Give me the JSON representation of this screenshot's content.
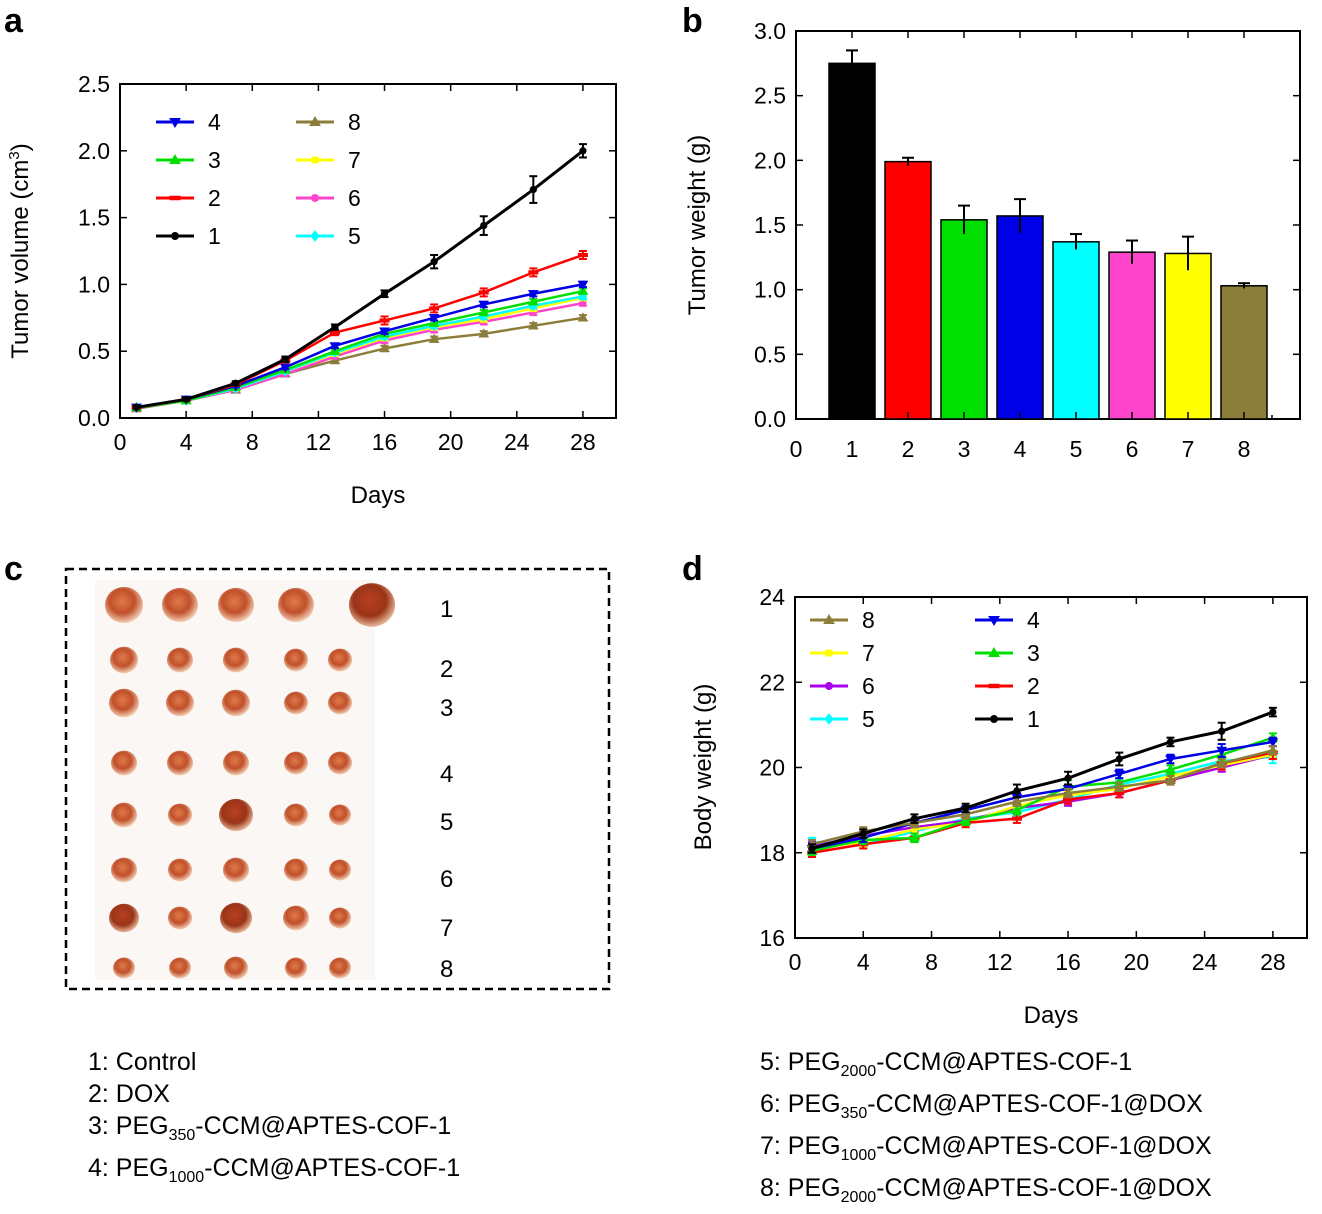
{
  "panels": {
    "a": "a",
    "b": "b",
    "c": "c",
    "d": "d"
  },
  "colors": {
    "1": "#000000",
    "2": "#ff0000",
    "3": "#00e000",
    "4": "#0000e6",
    "5": "#00ffff",
    "6": "#ff44cc",
    "7": "#ffff00",
    "8": "#8b7d3a",
    "d6": "#aa00ee"
  },
  "panel_c": {
    "row_labels": [
      "1",
      "2",
      "3",
      "4",
      "5",
      "6",
      "7",
      "8"
    ],
    "description_in_image": "photograph of excised tumors arranged in 8 rows"
  },
  "captions": {
    "left": [
      {
        "prefix": "1: Control",
        "sub": "",
        "suffix": ""
      },
      {
        "prefix": "2: DOX",
        "sub": "",
        "suffix": ""
      },
      {
        "prefix": "3: PEG",
        "sub": "350",
        "suffix": "-CCM@APTES-COF-1"
      },
      {
        "prefix": "4: PEG",
        "sub": "1000",
        "suffix": "-CCM@APTES-COF-1"
      }
    ],
    "right": [
      {
        "prefix": "5: PEG",
        "sub": "2000",
        "suffix": "-CCM@APTES-COF-1"
      },
      {
        "prefix": "6: PEG",
        "sub": "350",
        "suffix": "-CCM@APTES-COF-1@DOX"
      },
      {
        "prefix": "7: PEG",
        "sub": "1000",
        "suffix": "-CCM@APTES-COF-1@DOX"
      },
      {
        "prefix": "8: PEG",
        "sub": "2000",
        "suffix": "-CCM@APTES-COF-1@DOX"
      }
    ]
  },
  "chart_data": [
    {
      "id": "a",
      "type": "line",
      "title": "",
      "xlabel": "Days",
      "ylabel_prefix": "Tumor volume (cm",
      "ylabel_sup": "3",
      "ylabel_suffix": ")",
      "xlim": [
        0,
        30
      ],
      "ylim": [
        0,
        2.5
      ],
      "xticks": [
        0,
        4,
        8,
        12,
        16,
        20,
        24,
        28
      ],
      "yticks": [
        0.0,
        0.5,
        1.0,
        1.5,
        2.0,
        2.5
      ],
      "ytick_labels": [
        "0.0",
        "0.5",
        "1.0",
        "1.5",
        "2.0",
        "2.5"
      ],
      "x": [
        1,
        4,
        7,
        10,
        13,
        16,
        19,
        22,
        25,
        28
      ],
      "legend_columns": [
        [
          "4",
          "3",
          "2",
          "1"
        ],
        [
          "8",
          "7",
          "6",
          "5"
        ]
      ],
      "series": [
        {
          "name": "1",
          "marker": "circle",
          "values": [
            0.08,
            0.14,
            0.26,
            0.44,
            0.68,
            0.93,
            1.17,
            1.44,
            1.71,
            2.0
          ],
          "errors": [
            0.01,
            0.01,
            0.015,
            0.02,
            0.02,
            0.025,
            0.05,
            0.07,
            0.1,
            0.05
          ]
        },
        {
          "name": "2",
          "marker": "dash",
          "values": [
            0.08,
            0.14,
            0.25,
            0.43,
            0.64,
            0.73,
            0.82,
            0.94,
            1.09,
            1.22
          ],
          "errors": [
            0.01,
            0.01,
            0.01,
            0.015,
            0.02,
            0.03,
            0.03,
            0.03,
            0.03,
            0.03
          ]
        },
        {
          "name": "3",
          "marker": "triangle",
          "values": [
            0.08,
            0.13,
            0.23,
            0.36,
            0.5,
            0.63,
            0.71,
            0.79,
            0.87,
            0.95
          ],
          "errors": [
            0.01,
            0.01,
            0.01,
            0.015,
            0.015,
            0.02,
            0.02,
            0.02,
            0.02,
            0.02
          ]
        },
        {
          "name": "4",
          "marker": "triangle-down",
          "values": [
            0.08,
            0.14,
            0.24,
            0.38,
            0.54,
            0.65,
            0.75,
            0.85,
            0.93,
            1.0
          ],
          "errors": [
            0.01,
            0.01,
            0.01,
            0.015,
            0.015,
            0.02,
            0.02,
            0.02,
            0.02,
            0.02
          ]
        },
        {
          "name": "5",
          "marker": "diamond",
          "values": [
            0.08,
            0.13,
            0.22,
            0.35,
            0.49,
            0.61,
            0.69,
            0.76,
            0.84,
            0.91
          ],
          "errors": [
            0.01,
            0.01,
            0.01,
            0.015,
            0.015,
            0.02,
            0.02,
            0.02,
            0.02,
            0.02
          ]
        },
        {
          "name": "6",
          "marker": "circle",
          "values": [
            0.08,
            0.13,
            0.21,
            0.33,
            0.46,
            0.58,
            0.66,
            0.72,
            0.79,
            0.86
          ],
          "errors": [
            0.01,
            0.01,
            0.01,
            0.015,
            0.015,
            0.02,
            0.02,
            0.02,
            0.02,
            0.02
          ]
        },
        {
          "name": "7",
          "marker": "square",
          "values": [
            0.08,
            0.13,
            0.22,
            0.35,
            0.48,
            0.6,
            0.68,
            0.74,
            0.82,
            0.9
          ],
          "errors": [
            0.01,
            0.01,
            0.01,
            0.015,
            0.015,
            0.02,
            0.02,
            0.02,
            0.02,
            0.02
          ]
        },
        {
          "name": "8",
          "marker": "triangle",
          "values": [
            0.07,
            0.13,
            0.21,
            0.33,
            0.43,
            0.52,
            0.59,
            0.63,
            0.69,
            0.75
          ],
          "errors": [
            0.01,
            0.01,
            0.01,
            0.015,
            0.015,
            0.02,
            0.02,
            0.02,
            0.02,
            0.02
          ]
        }
      ]
    },
    {
      "id": "b",
      "type": "bar",
      "title": "",
      "xlabel": "",
      "ylabel": "Tumor weight (g)",
      "xlim": [
        0,
        9
      ],
      "ylim": [
        0,
        3.0
      ],
      "xticks": [
        0,
        1,
        2,
        3,
        4,
        5,
        6,
        7,
        8
      ],
      "yticks": [
        0.0,
        0.5,
        1.0,
        1.5,
        2.0,
        2.5,
        3.0
      ],
      "ytick_labels": [
        "0.0",
        "0.5",
        "1.0",
        "1.5",
        "2.0",
        "2.5",
        "3.0"
      ],
      "categories": [
        "1",
        "2",
        "3",
        "4",
        "5",
        "6",
        "7",
        "8"
      ],
      "values": [
        2.75,
        1.99,
        1.54,
        1.57,
        1.37,
        1.29,
        1.28,
        1.03
      ],
      "errors": [
        0.1,
        0.03,
        0.11,
        0.13,
        0.06,
        0.09,
        0.13,
        0.02
      ]
    },
    {
      "id": "d",
      "type": "line",
      "title": "",
      "xlabel": "Days",
      "ylabel": "Body weight (g)",
      "xlim": [
        0,
        30
      ],
      "ylim": [
        16,
        24
      ],
      "xticks": [
        0,
        4,
        8,
        12,
        16,
        20,
        24,
        28
      ],
      "yticks": [
        16,
        18,
        20,
        22,
        24
      ],
      "ytick_labels": [
        "16",
        "18",
        "20",
        "22",
        "24"
      ],
      "x": [
        1,
        4,
        7,
        10,
        13,
        16,
        19,
        22,
        25,
        28
      ],
      "legend_columns": [
        [
          "8",
          "7",
          "6",
          "5"
        ],
        [
          "4",
          "3",
          "2",
          "1"
        ]
      ],
      "series": [
        {
          "name": "1",
          "marker": "circle",
          "values": [
            18.1,
            18.45,
            18.8,
            19.05,
            19.45,
            19.75,
            20.2,
            20.6,
            20.85,
            21.3
          ],
          "errors": [
            0.1,
            0.1,
            0.1,
            0.1,
            0.15,
            0.15,
            0.15,
            0.1,
            0.2,
            0.1
          ]
        },
        {
          "name": "2",
          "marker": "dash",
          "values": [
            18.0,
            18.2,
            18.35,
            18.7,
            18.8,
            19.25,
            19.4,
            19.7,
            20.1,
            20.35
          ],
          "errors": [
            0.1,
            0.1,
            0.1,
            0.1,
            0.1,
            0.1,
            0.1,
            0.1,
            0.15,
            0.15
          ]
        },
        {
          "name": "3",
          "marker": "triangle",
          "values": [
            18.05,
            18.3,
            18.35,
            18.75,
            19.0,
            19.55,
            19.65,
            19.95,
            20.3,
            20.7
          ],
          "errors": [
            0.1,
            0.1,
            0.1,
            0.1,
            0.1,
            0.15,
            0.1,
            0.1,
            0.15,
            0.1
          ]
        },
        {
          "name": "4",
          "marker": "triangle-down",
          "values": [
            18.1,
            18.35,
            18.7,
            19.0,
            19.3,
            19.5,
            19.85,
            20.2,
            20.4,
            20.6
          ],
          "errors": [
            0.1,
            0.1,
            0.1,
            0.1,
            0.1,
            0.1,
            0.1,
            0.1,
            0.15,
            0.1
          ]
        },
        {
          "name": "5",
          "marker": "diamond",
          "values": [
            18.25,
            18.2,
            18.5,
            18.8,
            18.95,
            19.25,
            19.6,
            19.85,
            20.15,
            20.25
          ],
          "errors": [
            0.1,
            0.1,
            0.1,
            0.1,
            0.1,
            0.1,
            0.1,
            0.1,
            0.1,
            0.15
          ]
        },
        {
          "name": "6",
          "marker": "circle",
          "values": [
            18.15,
            18.4,
            18.6,
            18.75,
            19.05,
            19.2,
            19.4,
            19.7,
            20.0,
            20.3
          ],
          "errors": [
            0.1,
            0.1,
            0.1,
            0.1,
            0.1,
            0.1,
            0.1,
            0.1,
            0.1,
            0.1
          ]
        },
        {
          "name": "7",
          "marker": "square",
          "values": [
            18.1,
            18.25,
            18.55,
            18.7,
            19.1,
            19.35,
            19.5,
            19.8,
            20.05,
            20.3
          ],
          "errors": [
            0.1,
            0.1,
            0.1,
            0.1,
            0.1,
            0.1,
            0.1,
            0.1,
            0.1,
            0.1
          ]
        },
        {
          "name": "8",
          "marker": "triangle",
          "values": [
            18.2,
            18.5,
            18.7,
            18.9,
            19.2,
            19.4,
            19.55,
            19.7,
            20.1,
            20.4
          ],
          "errors": [
            0.1,
            0.1,
            0.1,
            0.1,
            0.1,
            0.1,
            0.1,
            0.1,
            0.1,
            0.1
          ]
        }
      ]
    }
  ]
}
